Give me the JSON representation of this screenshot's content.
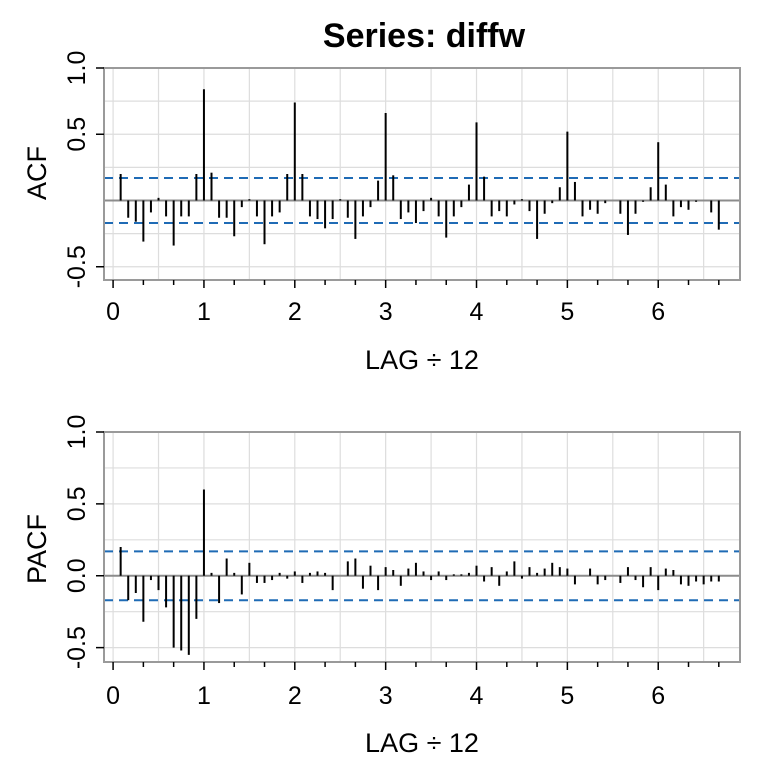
{
  "title": "Series:  diffw",
  "colors": {
    "spike": "#000000",
    "zero_line": "#8c8c8c",
    "confidence_band": "#1f6bb5",
    "grid": "#dddddd",
    "frame": "#9a9a9a"
  },
  "chart_data": [
    {
      "type": "bar",
      "id": "acf",
      "title": "Series:  diffw",
      "xlabel": "LAG ÷ 12",
      "ylabel": "ACF",
      "xlim": [
        -0.1,
        6.9
      ],
      "ylim": [
        -0.6,
        1.0
      ],
      "x_ticks": [
        0,
        1,
        2,
        3,
        4,
        5,
        6
      ],
      "y_ticks": [
        -0.5,
        0.5,
        1.0
      ],
      "y_tick_labels": [
        "-0.5",
        "0.5",
        "1.0"
      ],
      "grid": true,
      "confidence_bound": 0.17,
      "lags": [
        0.0833,
        0.1667,
        0.25,
        0.3333,
        0.4167,
        0.5,
        0.5833,
        0.6667,
        0.75,
        0.8333,
        0.9167,
        1.0,
        1.0833,
        1.1667,
        1.25,
        1.3333,
        1.4167,
        1.5,
        1.5833,
        1.6667,
        1.75,
        1.8333,
        1.9167,
        2.0,
        2.0833,
        2.1667,
        2.25,
        2.3333,
        2.4167,
        2.5,
        2.5833,
        2.6667,
        2.75,
        2.8333,
        2.9167,
        3.0,
        3.0833,
        3.1667,
        3.25,
        3.3333,
        3.4167,
        3.5,
        3.5833,
        3.6667,
        3.75,
        3.8333,
        3.9167,
        4.0,
        4.0833,
        4.1667,
        4.25,
        4.3333,
        4.4167,
        4.5,
        4.5833,
        4.6667,
        4.75,
        4.8333,
        4.9167,
        5.0,
        5.0833,
        5.1667,
        5.25,
        5.3333,
        5.4167,
        5.5,
        5.5833,
        5.6667,
        5.75,
        5.8333,
        5.9167,
        6.0,
        6.0833,
        6.1667,
        6.25,
        6.3333,
        6.4167,
        6.5,
        6.5833,
        6.6667
      ],
      "values": [
        0.2,
        -0.13,
        -0.16,
        -0.31,
        -0.09,
        0.02,
        -0.12,
        -0.34,
        -0.12,
        -0.12,
        0.2,
        0.84,
        0.21,
        -0.13,
        -0.13,
        -0.27,
        -0.05,
        0.01,
        -0.12,
        -0.33,
        -0.12,
        -0.09,
        0.2,
        0.74,
        0.2,
        -0.12,
        -0.14,
        -0.21,
        -0.14,
        0.01,
        -0.13,
        -0.29,
        -0.12,
        -0.05,
        0.15,
        0.66,
        0.19,
        -0.14,
        -0.09,
        -0.17,
        -0.08,
        0.02,
        -0.12,
        -0.28,
        -0.12,
        -0.05,
        0.12,
        0.59,
        0.18,
        -0.12,
        -0.08,
        -0.12,
        -0.03,
        0.01,
        -0.08,
        -0.29,
        -0.1,
        -0.02,
        0.1,
        0.52,
        0.14,
        -0.12,
        -0.07,
        -0.1,
        -0.02,
        0.0,
        -0.1,
        -0.26,
        -0.1,
        -0.01,
        0.1,
        0.44,
        0.12,
        -0.12,
        -0.05,
        -0.07,
        -0.01,
        0.0,
        -0.09,
        -0.22
      ]
    },
    {
      "type": "bar",
      "id": "pacf",
      "xlabel": "LAG ÷ 12",
      "ylabel": "PACF",
      "xlim": [
        -0.1,
        6.9
      ],
      "ylim": [
        -0.6,
        1.0
      ],
      "x_ticks": [
        0,
        1,
        2,
        3,
        4,
        5,
        6
      ],
      "y_ticks": [
        -0.5,
        0.0,
        0.5,
        1.0
      ],
      "y_tick_labels": [
        "-0.5",
        "0.0",
        "0.5",
        "1.0"
      ],
      "grid": true,
      "confidence_bound": 0.17,
      "lags": [
        0.0833,
        0.1667,
        0.25,
        0.3333,
        0.4167,
        0.5,
        0.5833,
        0.6667,
        0.75,
        0.8333,
        0.9167,
        1.0,
        1.0833,
        1.1667,
        1.25,
        1.3333,
        1.4167,
        1.5,
        1.5833,
        1.6667,
        1.75,
        1.8333,
        1.9167,
        2.0,
        2.0833,
        2.1667,
        2.25,
        2.3333,
        2.4167,
        2.5,
        2.5833,
        2.6667,
        2.75,
        2.8333,
        2.9167,
        3.0,
        3.0833,
        3.1667,
        3.25,
        3.3333,
        3.4167,
        3.5,
        3.5833,
        3.6667,
        3.75,
        3.8333,
        3.9167,
        4.0,
        4.0833,
        4.1667,
        4.25,
        4.3333,
        4.4167,
        4.5,
        4.5833,
        4.6667,
        4.75,
        4.8333,
        4.9167,
        5.0,
        5.0833,
        5.1667,
        5.25,
        5.3333,
        5.4167,
        5.5,
        5.5833,
        5.6667,
        5.75,
        5.8333,
        5.9167,
        6.0,
        6.0833,
        6.1667,
        6.25,
        6.3333,
        6.4167,
        6.5,
        6.5833,
        6.6667
      ],
      "values": [
        0.2,
        -0.17,
        -0.12,
        -0.32,
        -0.03,
        -0.1,
        -0.22,
        -0.5,
        -0.52,
        -0.55,
        -0.3,
        0.6,
        0.02,
        -0.19,
        0.12,
        0.02,
        -0.13,
        0.09,
        -0.05,
        -0.05,
        -0.03,
        0.02,
        -0.02,
        0.03,
        -0.05,
        0.02,
        0.03,
        0.02,
        -0.1,
        0.0,
        0.1,
        0.12,
        -0.09,
        0.07,
        -0.1,
        0.06,
        0.04,
        -0.07,
        0.05,
        0.09,
        0.03,
        -0.03,
        0.03,
        -0.03,
        0.01,
        0.01,
        0.02,
        0.07,
        -0.04,
        0.06,
        -0.07,
        0.03,
        0.1,
        -0.02,
        0.06,
        0.02,
        0.05,
        0.09,
        0.06,
        0.05,
        -0.06,
        0.0,
        0.05,
        -0.06,
        -0.03,
        0.0,
        -0.05,
        0.06,
        -0.03,
        -0.08,
        0.06,
        -0.1,
        0.05,
        0.04,
        -0.06,
        -0.07,
        -0.04,
        -0.06,
        -0.04,
        -0.04
      ]
    }
  ]
}
